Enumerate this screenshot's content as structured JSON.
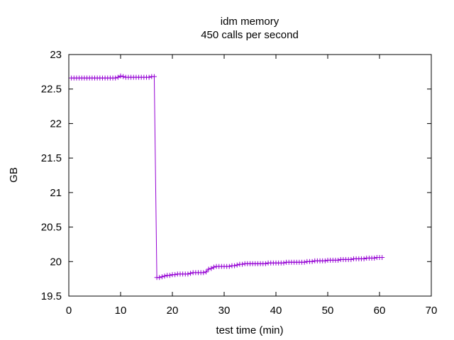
{
  "chart_data": {
    "type": "line",
    "title": "idm memory",
    "subtitle": "450 calls per second",
    "xlabel": "test time (min)",
    "ylabel": "GB",
    "xlim": [
      0,
      70
    ],
    "ylim": [
      19.5,
      23
    ],
    "xticks": [
      "0",
      "10",
      "20",
      "30",
      "40",
      "50",
      "60",
      "70"
    ],
    "yticks": [
      "19.5",
      "20",
      "20.5",
      "21",
      "21.5",
      "22",
      "22.5",
      "23"
    ],
    "grid": false,
    "legend": "none",
    "series": [
      {
        "color": "#9400d3",
        "marker": "plus",
        "points": [
          [
            0.5,
            22.66
          ],
          [
            1.0,
            22.66
          ],
          [
            1.5,
            22.66
          ],
          [
            2.0,
            22.66
          ],
          [
            2.5,
            22.66
          ],
          [
            3.0,
            22.66
          ],
          [
            3.5,
            22.66
          ],
          [
            4.0,
            22.66
          ],
          [
            4.5,
            22.66
          ],
          [
            5.0,
            22.66
          ],
          [
            5.5,
            22.66
          ],
          [
            6.0,
            22.66
          ],
          [
            6.5,
            22.66
          ],
          [
            7.0,
            22.66
          ],
          [
            7.5,
            22.66
          ],
          [
            8.0,
            22.66
          ],
          [
            8.5,
            22.66
          ],
          [
            9.0,
            22.66
          ],
          [
            9.5,
            22.67
          ],
          [
            10.0,
            22.69
          ],
          [
            10.5,
            22.68
          ],
          [
            11.0,
            22.67
          ],
          [
            11.5,
            22.67
          ],
          [
            12.0,
            22.67
          ],
          [
            12.5,
            22.67
          ],
          [
            13.0,
            22.67
          ],
          [
            13.5,
            22.67
          ],
          [
            14.0,
            22.67
          ],
          [
            14.5,
            22.67
          ],
          [
            15.0,
            22.67
          ],
          [
            15.5,
            22.67
          ],
          [
            16.0,
            22.68
          ],
          [
            16.5,
            22.68
          ],
          [
            17.0,
            19.77
          ],
          [
            17.5,
            19.77
          ],
          [
            18.0,
            19.78
          ],
          [
            18.5,
            19.79
          ],
          [
            19.0,
            19.8
          ],
          [
            19.5,
            19.8
          ],
          [
            20.0,
            19.81
          ],
          [
            20.5,
            19.81
          ],
          [
            21.0,
            19.82
          ],
          [
            21.5,
            19.82
          ],
          [
            22.0,
            19.82
          ],
          [
            22.5,
            19.82
          ],
          [
            23.0,
            19.82
          ],
          [
            23.5,
            19.83
          ],
          [
            24.0,
            19.84
          ],
          [
            24.5,
            19.84
          ],
          [
            25.0,
            19.84
          ],
          [
            25.5,
            19.84
          ],
          [
            26.0,
            19.84
          ],
          [
            26.5,
            19.85
          ],
          [
            27.0,
            19.89
          ],
          [
            27.5,
            19.9
          ],
          [
            28.0,
            19.92
          ],
          [
            28.5,
            19.93
          ],
          [
            29.0,
            19.93
          ],
          [
            29.5,
            19.93
          ],
          [
            30.0,
            19.93
          ],
          [
            30.5,
            19.93
          ],
          [
            31.0,
            19.93
          ],
          [
            31.5,
            19.94
          ],
          [
            32.0,
            19.94
          ],
          [
            32.5,
            19.95
          ],
          [
            33.0,
            19.96
          ],
          [
            33.5,
            19.96
          ],
          [
            34.0,
            19.97
          ],
          [
            34.5,
            19.97
          ],
          [
            35.0,
            19.97
          ],
          [
            35.5,
            19.97
          ],
          [
            36.0,
            19.97
          ],
          [
            36.5,
            19.97
          ],
          [
            37.0,
            19.97
          ],
          [
            37.5,
            19.97
          ],
          [
            38.0,
            19.97
          ],
          [
            38.5,
            19.98
          ],
          [
            39.0,
            19.98
          ],
          [
            39.5,
            19.98
          ],
          [
            40.0,
            19.98
          ],
          [
            40.5,
            19.98
          ],
          [
            41.0,
            19.98
          ],
          [
            41.5,
            19.98
          ],
          [
            42.0,
            19.99
          ],
          [
            42.5,
            19.99
          ],
          [
            43.0,
            19.99
          ],
          [
            43.5,
            19.99
          ],
          [
            44.0,
            19.99
          ],
          [
            44.5,
            19.99
          ],
          [
            45.0,
            19.99
          ],
          [
            45.5,
            19.99
          ],
          [
            46.0,
            20.0
          ],
          [
            46.5,
            20.0
          ],
          [
            47.0,
            20.0
          ],
          [
            47.5,
            20.01
          ],
          [
            48.0,
            20.01
          ],
          [
            48.5,
            20.01
          ],
          [
            49.0,
            20.01
          ],
          [
            49.5,
            20.01
          ],
          [
            50.0,
            20.02
          ],
          [
            50.5,
            20.02
          ],
          [
            51.0,
            20.02
          ],
          [
            51.5,
            20.02
          ],
          [
            52.0,
            20.02
          ],
          [
            52.5,
            20.03
          ],
          [
            53.0,
            20.03
          ],
          [
            53.5,
            20.03
          ],
          [
            54.0,
            20.03
          ],
          [
            54.5,
            20.03
          ],
          [
            55.0,
            20.04
          ],
          [
            55.5,
            20.04
          ],
          [
            56.0,
            20.04
          ],
          [
            56.5,
            20.04
          ],
          [
            57.0,
            20.04
          ],
          [
            57.5,
            20.05
          ],
          [
            58.0,
            20.05
          ],
          [
            58.5,
            20.05
          ],
          [
            59.0,
            20.05
          ],
          [
            59.5,
            20.06
          ],
          [
            60.0,
            20.06
          ],
          [
            60.5,
            20.06
          ]
        ]
      }
    ]
  }
}
